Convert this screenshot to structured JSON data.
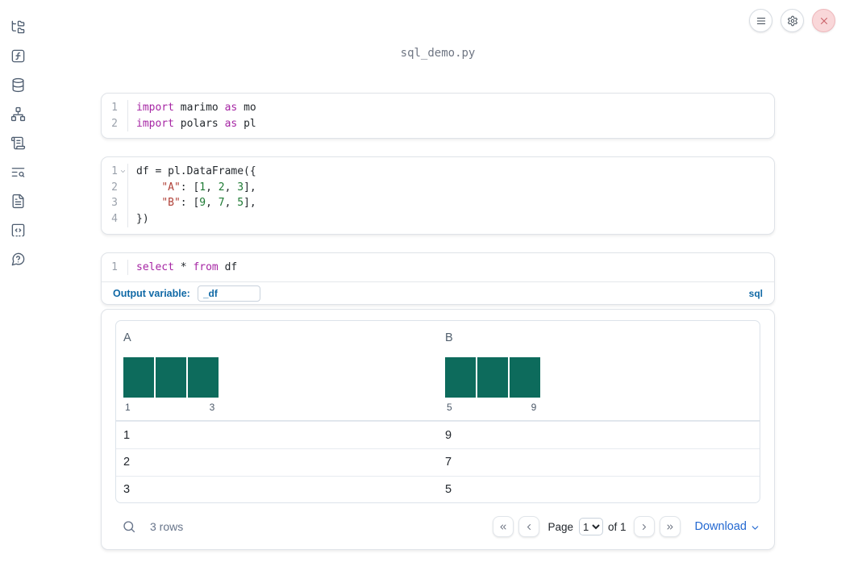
{
  "colors": {
    "histogram_bar": "#0d6b5c",
    "keyword": "#a626a4",
    "string": "#b04138",
    "number": "#1d7a33",
    "sql_accent_blue": "#1069a6",
    "download_blue": "#2368d1",
    "close_button_red": "#c95f66"
  },
  "sidebar": {
    "items": [
      {
        "icon": "file-tree"
      },
      {
        "icon": "function-square"
      },
      {
        "icon": "database"
      },
      {
        "icon": "dependency-graph"
      },
      {
        "icon": "scroll"
      },
      {
        "icon": "text-search"
      },
      {
        "icon": "document"
      },
      {
        "icon": "code-snippet"
      },
      {
        "icon": "help"
      }
    ]
  },
  "topbar": {
    "buttons": [
      {
        "icon": "menu",
        "name": "menu-button"
      },
      {
        "icon": "settings",
        "name": "settings-button"
      },
      {
        "icon": "close",
        "name": "close-button"
      }
    ]
  },
  "notebook": {
    "title": "sql_demo.py"
  },
  "cells": [
    {
      "type": "python",
      "lines": [
        {
          "num": "1",
          "tokens": [
            [
              "kw",
              "import"
            ],
            [
              "pl",
              " marimo "
            ],
            [
              "kw",
              "as"
            ],
            [
              "pl",
              " mo"
            ]
          ]
        },
        {
          "num": "2",
          "tokens": [
            [
              "kw",
              "import"
            ],
            [
              "pl",
              " polars "
            ],
            [
              "kw",
              "as"
            ],
            [
              "pl",
              " pl"
            ]
          ]
        }
      ]
    },
    {
      "type": "python",
      "lines": [
        {
          "num": "1",
          "fold": true,
          "tokens": [
            [
              "pl",
              "df = pl.DataFrame({"
            ]
          ]
        },
        {
          "num": "2",
          "tokens": [
            [
              "pl",
              "    "
            ],
            [
              "str",
              "\"A\""
            ],
            [
              "pl",
              ": ["
            ],
            [
              "num",
              "1"
            ],
            [
              "pl",
              ", "
            ],
            [
              "num",
              "2"
            ],
            [
              "pl",
              ", "
            ],
            [
              "num",
              "3"
            ],
            [
              "pl",
              "],"
            ]
          ]
        },
        {
          "num": "3",
          "tokens": [
            [
              "pl",
              "    "
            ],
            [
              "str",
              "\"B\""
            ],
            [
              "pl",
              ": ["
            ],
            [
              "num",
              "9"
            ],
            [
              "pl",
              ", "
            ],
            [
              "num",
              "7"
            ],
            [
              "pl",
              ", "
            ],
            [
              "num",
              "5"
            ],
            [
              "pl",
              "],"
            ]
          ]
        },
        {
          "num": "4",
          "tokens": [
            [
              "pl",
              "})"
            ]
          ]
        }
      ]
    },
    {
      "type": "sql",
      "lines": [
        {
          "num": "1",
          "tokens": [
            [
              "kw",
              "select"
            ],
            [
              "pl",
              " * "
            ],
            [
              "kw",
              "from"
            ],
            [
              "pl",
              " df"
            ]
          ]
        }
      ],
      "output_variable_label": "Output variable:",
      "output_variable_value": "_df",
      "language_label": "sql"
    }
  ],
  "table": {
    "columns": [
      {
        "name": "A",
        "histogram": {
          "bars": [
            1,
            1,
            1
          ],
          "min_label": "1",
          "max_label": "3"
        }
      },
      {
        "name": "B",
        "histogram": {
          "bars": [
            1,
            1,
            1
          ],
          "min_label": "5",
          "max_label": "9"
        }
      }
    ],
    "rows": [
      [
        "1",
        "9"
      ],
      [
        "2",
        "7"
      ],
      [
        "3",
        "5"
      ]
    ],
    "footer": {
      "row_count": "3 rows",
      "page_label": "Page",
      "page_value": "1",
      "of_label": "of 1",
      "download_label": "Download"
    }
  }
}
